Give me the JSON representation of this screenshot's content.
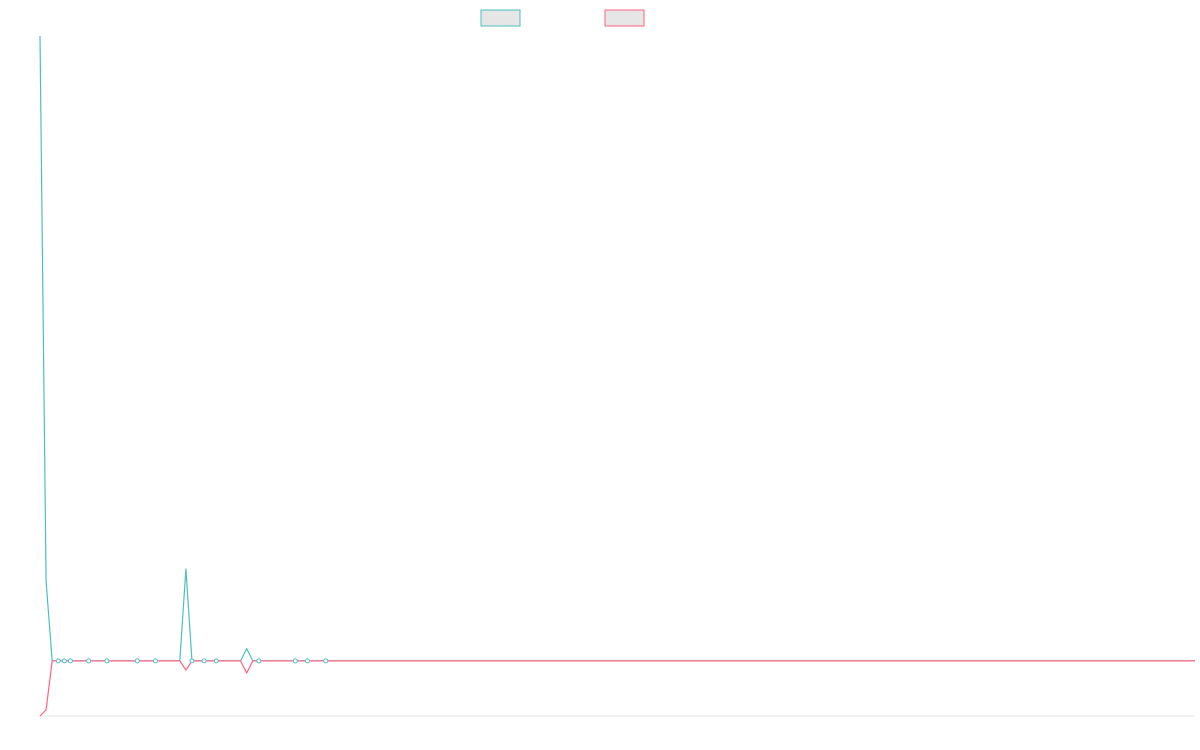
{
  "chart_data": {
    "type": "line",
    "title": "",
    "xlabel": "",
    "ylabel": "",
    "grid": false,
    "legend": {
      "placement": "top-center",
      "entries": [
        {
          "series_index": 0,
          "label": ""
        },
        {
          "series_index": 1,
          "label": ""
        }
      ]
    },
    "x": [
      0,
      1,
      2,
      3,
      4,
      5,
      6,
      7,
      8,
      9,
      10,
      11,
      12,
      13,
      14,
      15,
      16,
      17,
      18,
      19,
      20,
      21,
      22,
      23,
      24,
      25,
      26,
      27,
      28,
      29,
      30,
      31,
      32,
      33,
      34,
      35,
      36,
      37,
      38,
      39,
      40,
      41,
      42,
      43,
      44,
      45,
      46,
      47,
      48,
      49,
      50,
      51,
      52,
      53,
      54,
      55,
      56,
      57,
      58,
      59,
      60,
      61,
      62,
      63,
      64,
      65,
      66,
      67,
      68,
      69,
      70,
      71,
      72,
      73,
      74,
      75,
      76,
      77,
      78,
      79,
      80,
      81,
      82,
      83,
      84,
      85,
      86,
      87,
      88,
      89,
      90,
      91,
      92,
      93,
      94,
      95,
      96,
      97,
      98,
      99,
      100,
      101,
      102,
      103,
      104,
      105,
      106,
      107,
      108,
      109,
      110,
      111,
      112,
      113,
      114,
      115,
      116,
      117,
      118,
      119,
      120,
      121,
      122,
      123,
      124,
      125,
      126,
      127,
      128,
      129,
      130,
      131,
      132,
      133,
      134,
      135,
      136,
      137,
      138,
      139,
      140,
      141,
      142,
      143,
      144,
      145,
      146,
      147,
      148,
      149,
      150,
      151,
      152,
      153,
      154,
      155,
      156,
      157,
      158,
      159,
      160,
      161,
      162,
      163,
      164,
      165,
      166,
      167,
      168,
      169,
      170,
      171,
      172,
      173,
      174,
      175,
      176,
      177,
      178,
      179,
      180,
      181,
      182,
      183,
      184,
      185,
      186,
      187,
      188,
      189,
      190
    ],
    "xlim": [
      0,
      190
    ],
    "ylim": [
      -9,
      102
    ],
    "series": [
      {
        "color": "#4bc0c0",
        "values": [
          102,
          13,
          0,
          0,
          0,
          0,
          0,
          0,
          0,
          0,
          0,
          0,
          0,
          0,
          0,
          0,
          0,
          0,
          0,
          0,
          0,
          0,
          0,
          0,
          15,
          0,
          0,
          0,
          0,
          0,
          0,
          0,
          0,
          0,
          2,
          0,
          0,
          0,
          0,
          0,
          0,
          0,
          0,
          0,
          0,
          0,
          0,
          0,
          0,
          0,
          0,
          0,
          0,
          0,
          0,
          0,
          0,
          0,
          0,
          0,
          0,
          0,
          0,
          0,
          0,
          0,
          0,
          0,
          0,
          0,
          0,
          0,
          0,
          0,
          0,
          0,
          0,
          0,
          0,
          0,
          0,
          0,
          0,
          0,
          0,
          0,
          0,
          0,
          0,
          0,
          0,
          0,
          0,
          0,
          0,
          0,
          0,
          0,
          0,
          0,
          0,
          0,
          0,
          0,
          0,
          0,
          0,
          0,
          0,
          0,
          0,
          0,
          0,
          0,
          0,
          0,
          0,
          0,
          0,
          0,
          0,
          0,
          0,
          0,
          0,
          0,
          0,
          0,
          0,
          0,
          0,
          0,
          0,
          0,
          0,
          0,
          0,
          0,
          0,
          0,
          0,
          0,
          0,
          0,
          0,
          0,
          0,
          0,
          0,
          0,
          0,
          0,
          0,
          0,
          0,
          0,
          0,
          0,
          0,
          0,
          0,
          0,
          0,
          0,
          0,
          0,
          0,
          0,
          0,
          0,
          0,
          0,
          0,
          0,
          0,
          0,
          0,
          0,
          0,
          0,
          0,
          0,
          0,
          0,
          0,
          0,
          0,
          0,
          0,
          0,
          0
        ]
      },
      {
        "color": "#ff6384",
        "values": [
          -9,
          -8,
          0,
          0,
          0,
          0,
          0,
          0,
          0,
          0,
          0,
          0,
          0,
          0,
          0,
          0,
          0,
          0,
          0,
          0,
          0,
          0,
          0,
          0,
          -1.5,
          0,
          0,
          0,
          0,
          0,
          0,
          0,
          0,
          0,
          -2,
          0,
          0,
          0,
          0,
          0,
          0,
          0,
          0,
          0,
          0,
          0,
          0,
          0,
          0,
          0,
          0,
          0,
          0,
          0,
          0,
          0,
          0,
          0,
          0,
          0,
          0,
          0,
          0,
          0,
          0,
          0,
          0,
          0,
          0,
          0,
          0,
          0,
          0,
          0,
          0,
          0,
          0,
          0,
          0,
          0,
          0,
          0,
          0,
          0,
          0,
          0,
          0,
          0,
          0,
          0,
          0,
          0,
          0,
          0,
          0,
          0,
          0,
          0,
          0,
          0,
          0,
          0,
          0,
          0,
          0,
          0,
          0,
          0,
          0,
          0,
          0,
          0,
          0,
          0,
          0,
          0,
          0,
          0,
          0,
          0,
          0,
          0,
          0,
          0,
          0,
          0,
          0,
          0,
          0,
          0,
          0,
          0,
          0,
          0,
          0,
          0,
          0,
          0,
          0,
          0,
          0,
          0,
          0,
          0,
          0,
          0,
          0,
          0,
          0,
          0,
          0,
          0,
          0,
          0,
          0,
          0,
          0,
          0,
          0,
          0,
          0,
          0,
          0,
          0,
          0,
          0,
          0,
          0,
          0,
          0,
          0,
          0,
          0,
          0,
          0,
          0,
          0,
          0,
          0,
          0,
          0,
          0,
          0,
          0,
          0,
          0,
          0,
          0,
          0,
          0,
          0
        ]
      }
    ],
    "markers": [
      {
        "x": 3,
        "y": 0,
        "series_index": 0
      },
      {
        "x": 4,
        "y": 0,
        "series_index": 0
      },
      {
        "x": 5,
        "y": 0,
        "series_index": 0
      },
      {
        "x": 8,
        "y": 0,
        "series_index": 0
      },
      {
        "x": 11,
        "y": 0,
        "series_index": 0
      },
      {
        "x": 16,
        "y": 0,
        "series_index": 0
      },
      {
        "x": 19,
        "y": 0,
        "series_index": 0
      },
      {
        "x": 25,
        "y": 0,
        "series_index": 0
      },
      {
        "x": 27,
        "y": 0,
        "series_index": 0
      },
      {
        "x": 29,
        "y": 0,
        "series_index": 0
      },
      {
        "x": 36,
        "y": 0,
        "series_index": 0
      },
      {
        "x": 42,
        "y": 0,
        "series_index": 0
      },
      {
        "x": 44,
        "y": 0,
        "series_index": 0
      },
      {
        "x": 47,
        "y": 0,
        "series_index": 0
      }
    ]
  }
}
